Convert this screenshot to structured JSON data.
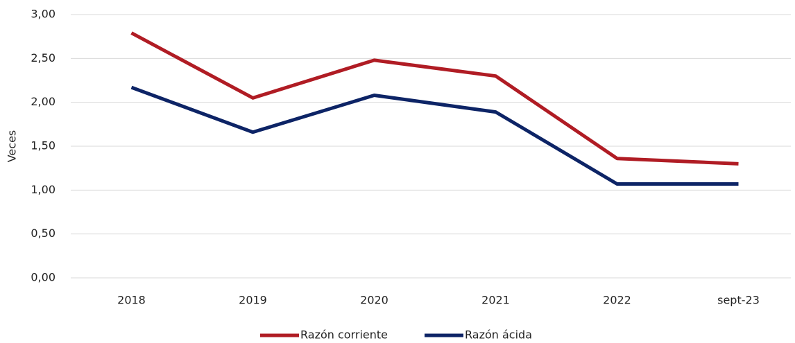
{
  "chart_data": {
    "type": "line",
    "y_label": "Veces",
    "categories": [
      "2018",
      "2019",
      "2020",
      "2021",
      "2022",
      "sept-23"
    ],
    "series": [
      {
        "name": "Razón corriente",
        "color": "#b01c24",
        "values": [
          2.79,
          2.05,
          2.48,
          2.3,
          1.36,
          1.3
        ]
      },
      {
        "name": "Razón ácida",
        "color": "#0d2466",
        "values": [
          2.17,
          1.66,
          2.08,
          1.89,
          1.07,
          1.07
        ]
      }
    ],
    "ylim": [
      0,
      3
    ],
    "yticks": [
      {
        "value": 0,
        "label": "0,00"
      },
      {
        "value": 0.5,
        "label": "0,50"
      },
      {
        "value": 1,
        "label": "1,00"
      },
      {
        "value": 1.5,
        "label": "1,50"
      },
      {
        "value": 2,
        "label": "2,00"
      },
      {
        "value": 2.5,
        "label": "2,50"
      },
      {
        "value": 3,
        "label": "3,00"
      }
    ],
    "grid": true,
    "legend": "bottom"
  }
}
